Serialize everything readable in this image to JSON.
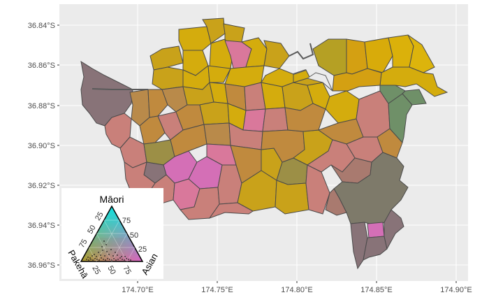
{
  "map": {
    "x_ticks": [
      "174.70°E",
      "174.75°E",
      "174.80°E",
      "174.85°E",
      "174.90°E"
    ],
    "y_ticks": [
      "36.84°S",
      "36.86°S",
      "36.88°S",
      "36.90°S",
      "36.92°S",
      "36.94°S",
      "36.96°S"
    ],
    "panel_background": "#ebebeb",
    "grid_color": "#ffffff",
    "water_line_color": "#5a5a5a",
    "region_colors": {
      "gold": "#d4ac0d",
      "gold2": "#c9a21a",
      "tan": "#c08a3e",
      "tan2": "#b98a4a",
      "pink": "#d9789b",
      "magenta": "#d46fb6",
      "rose": "#c9807a",
      "olive": "#9c8f46",
      "green": "#6f9068",
      "grey": "#7e7a6a",
      "brownpink": "#a97a6f",
      "mauve": "#887378"
    }
  },
  "legend": {
    "title": "Māori",
    "left_label": "Pakehā",
    "right_label": "Asian",
    "tick_values": [
      "25",
      "50",
      "75"
    ]
  }
}
